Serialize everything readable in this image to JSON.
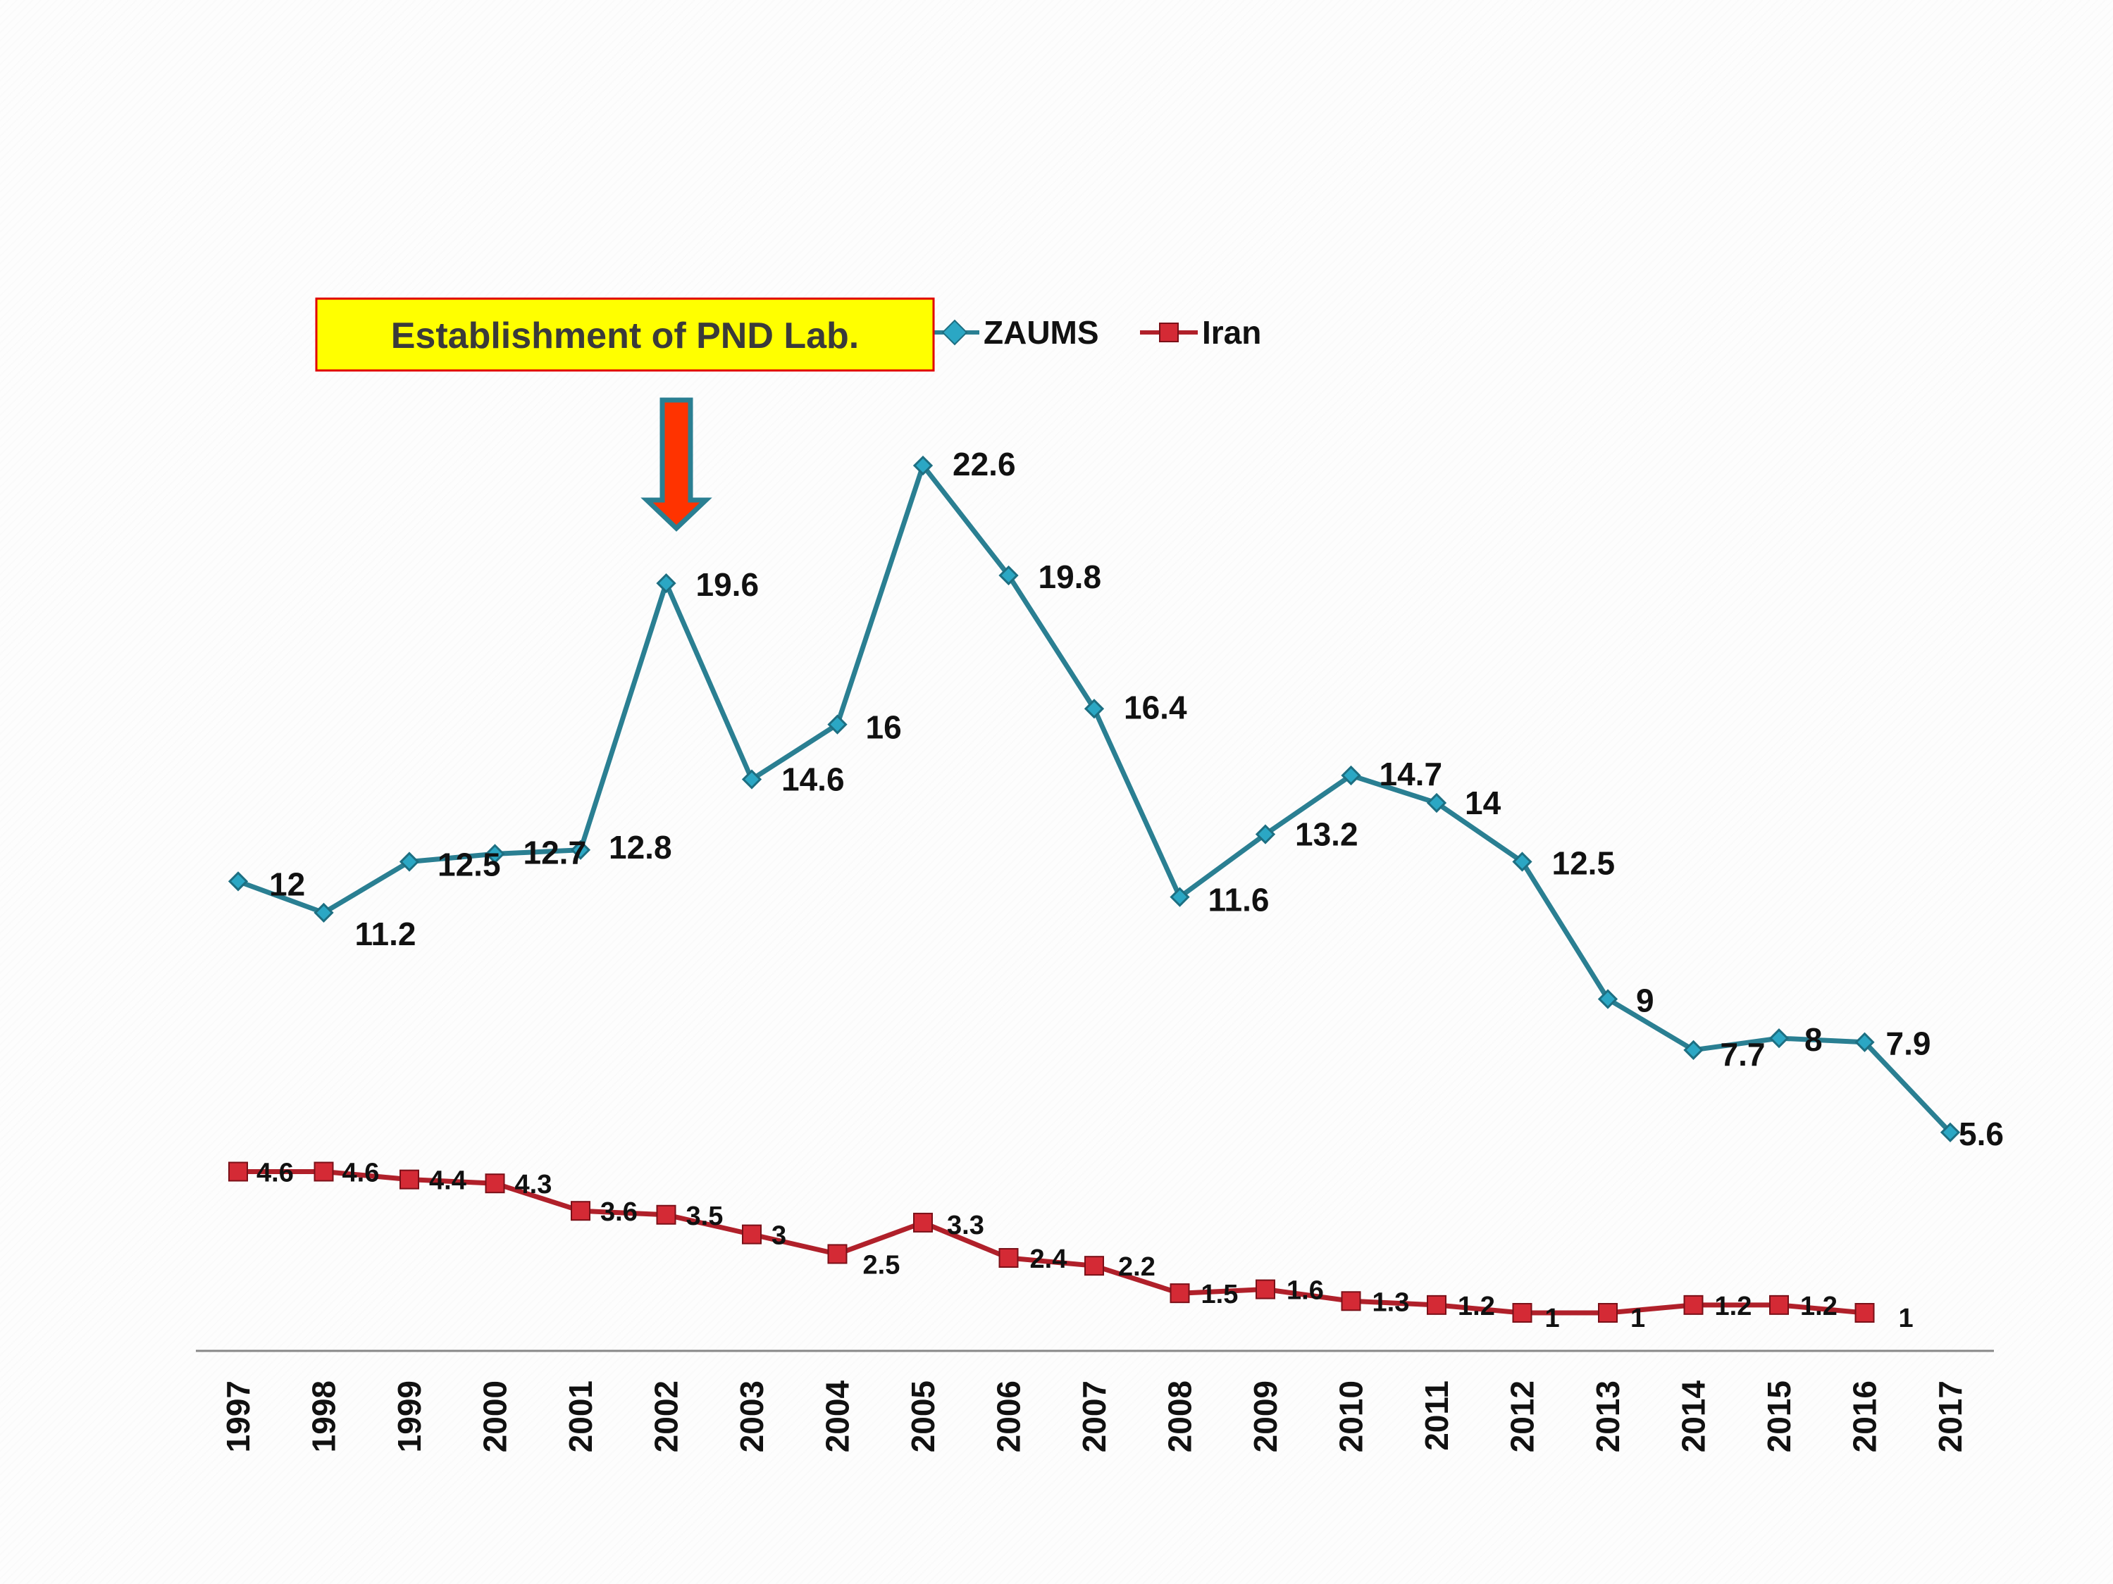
{
  "chart_data": {
    "type": "line",
    "categories": [
      "1997",
      "1998",
      "1999",
      "2000",
      "2001",
      "2002",
      "2003",
      "2004",
      "2005",
      "2006",
      "2007",
      "2008",
      "2009",
      "2010",
      "2011",
      "2012",
      "2013",
      "2014",
      "2015",
      "2016",
      "2017"
    ],
    "series": [
      {
        "name": "ZAUMS",
        "color": "#2a7f92",
        "marker": "diamond",
        "values": [
          12,
          11.2,
          12.5,
          12.7,
          12.8,
          19.6,
          14.6,
          16,
          22.6,
          19.8,
          16.4,
          11.6,
          13.2,
          14.7,
          14,
          12.5,
          9,
          7.7,
          8,
          7.9,
          5.6
        ],
        "labels": [
          "12",
          "11.2",
          "12.5",
          "12.7",
          "12.8",
          "19.6",
          "14.6",
          "16",
          "22.6",
          "19.8",
          "16.4",
          "11.6",
          "13.2",
          "14.7",
          "14",
          "12.5",
          "9",
          "7.7",
          "8",
          "7.9",
          "5.6"
        ]
      },
      {
        "name": "Iran",
        "color": "#b0202a",
        "marker": "square",
        "values": [
          4.6,
          4.6,
          4.4,
          4.3,
          3.6,
          3.5,
          3,
          2.5,
          3.3,
          2.4,
          2.2,
          1.5,
          1.6,
          1.3,
          1.2,
          1,
          1,
          1.2,
          1.2,
          1,
          null
        ],
        "labels": [
          "4.6",
          "4.6",
          "4.4",
          "4.3",
          "3.6",
          "3.5",
          "3",
          "2.5",
          "3.3",
          "2.4",
          "2.2",
          "1.5",
          "1.6",
          "1.3",
          "1.2",
          "1",
          "1",
          "1.2",
          "1.2",
          "1",
          ""
        ]
      }
    ],
    "ylim": [
      -0.5,
      24
    ],
    "grid": false,
    "legend_position": "top-center",
    "annotation": {
      "text": "Establishment of PND Lab.",
      "points_to": "2002",
      "box_fill": "#ffff00",
      "box_border": "#e00000",
      "arrow_color": "#ff3300",
      "arrow_border": "#2a7f92"
    }
  }
}
